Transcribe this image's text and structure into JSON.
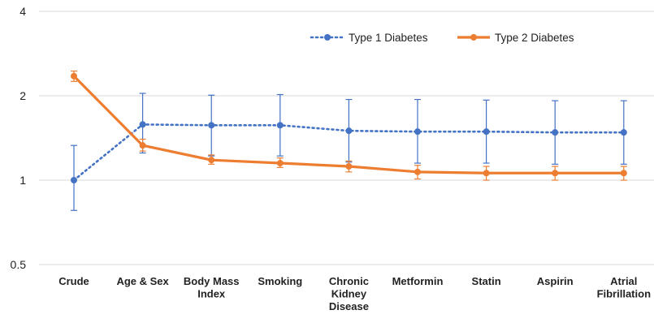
{
  "chart_data": {
    "type": "line",
    "title": "",
    "xlabel": "",
    "ylabel": "",
    "y_scale": "log",
    "ylim": [
      0.5,
      4
    ],
    "y_ticks": [
      "0.5",
      "1",
      "2",
      "4"
    ],
    "y_tick_values": [
      0.5,
      1,
      2,
      4
    ],
    "grid": "horizontal",
    "legend_position": "top-right",
    "categories": [
      [
        "Crude"
      ],
      [
        "Age & Sex"
      ],
      [
        "Body Mass",
        "Index"
      ],
      [
        "Smoking"
      ],
      [
        "Chronic",
        "Kidney",
        "Disease"
      ],
      [
        "Metformin"
      ],
      [
        "Statin"
      ],
      [
        "Aspirin"
      ],
      [
        "Atrial",
        "Fibrillation"
      ]
    ],
    "series": [
      {
        "name": "Type 1 Diabetes",
        "color": "#4472C4",
        "style": "dotted",
        "values": [
          1.0,
          1.58,
          1.57,
          1.57,
          1.5,
          1.49,
          1.49,
          1.48,
          1.48
        ],
        "lower": [
          0.78,
          1.25,
          1.22,
          1.22,
          1.16,
          1.15,
          1.15,
          1.14,
          1.14
        ],
        "upper": [
          1.33,
          2.04,
          2.01,
          2.02,
          1.94,
          1.94,
          1.93,
          1.92,
          1.92
        ]
      },
      {
        "name": "Type 2 Diabetes",
        "color": "#ED7D31",
        "style": "solid",
        "values": [
          2.35,
          1.33,
          1.18,
          1.15,
          1.12,
          1.07,
          1.06,
          1.06,
          1.06
        ],
        "lower": [
          2.25,
          1.27,
          1.14,
          1.11,
          1.07,
          1.01,
          1.0,
          1.0,
          1.0
        ],
        "upper": [
          2.45,
          1.4,
          1.23,
          1.2,
          1.17,
          1.13,
          1.12,
          1.12,
          1.12
        ]
      }
    ]
  }
}
